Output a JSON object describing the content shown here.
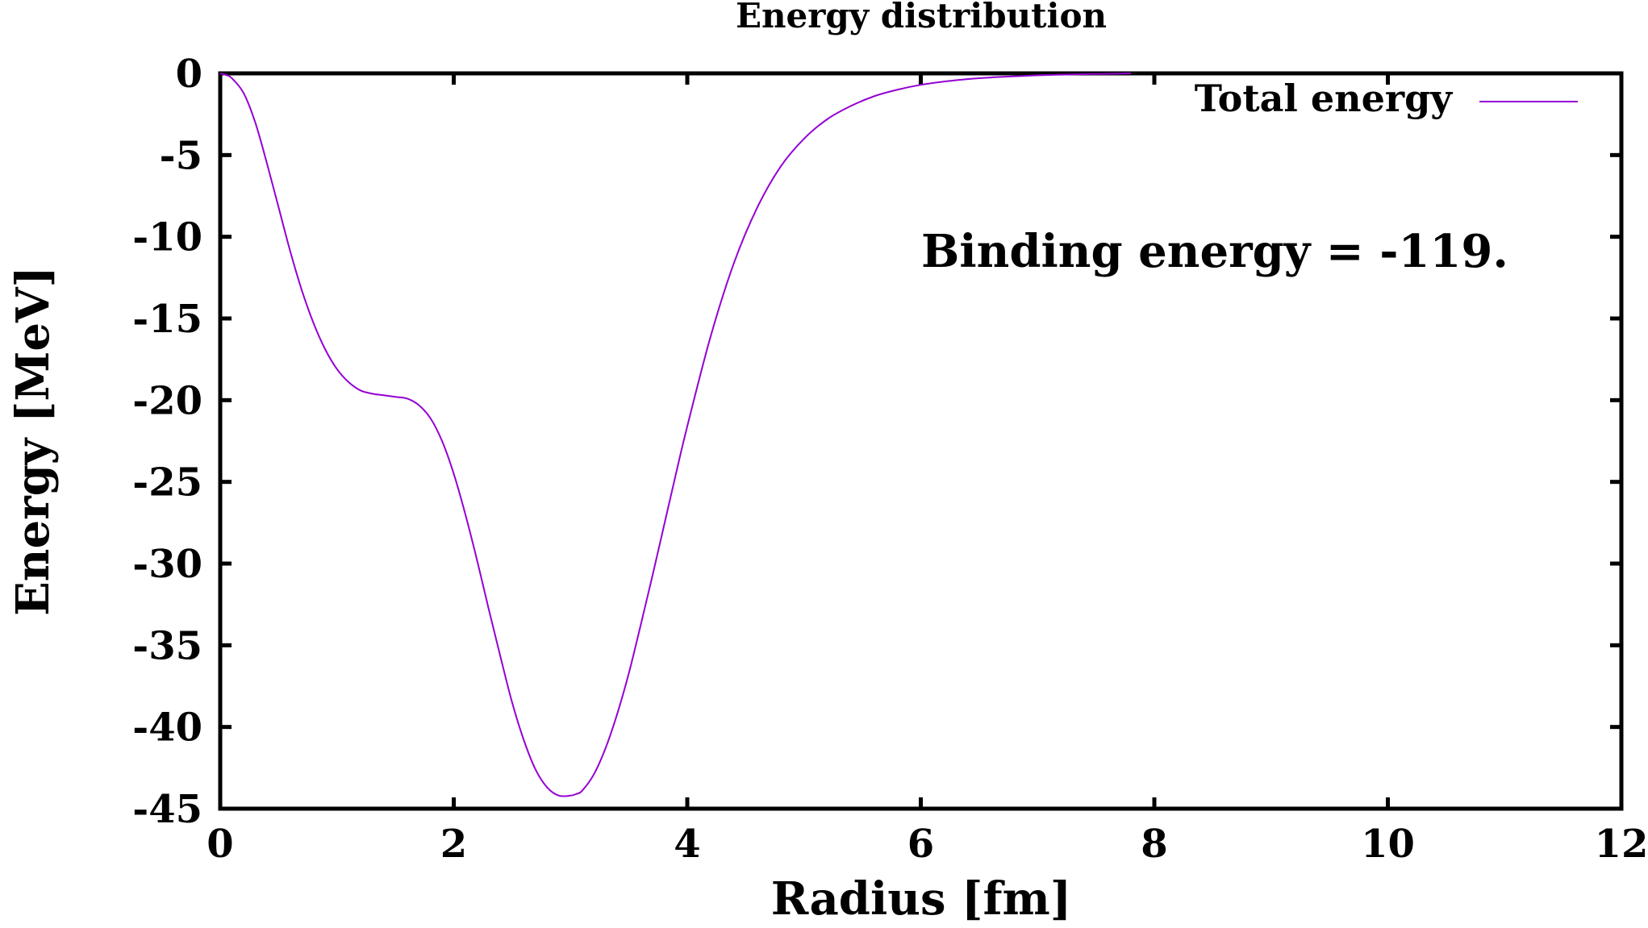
{
  "chart_data": {
    "type": "line",
    "title": "Energy distribution",
    "xlabel": "Radius [fm]",
    "ylabel": "Energy [MeV]",
    "xlim": [
      0,
      12
    ],
    "ylim": [
      -45,
      0
    ],
    "x_ticks": [
      "0",
      "2",
      "4",
      "6",
      "8",
      "10",
      "12"
    ],
    "y_ticks": [
      "0",
      "-5",
      "-10",
      "-15",
      "-20",
      "-25",
      "-30",
      "-35",
      "-40",
      "-45"
    ],
    "x_tick_values": [
      0,
      2,
      4,
      6,
      8,
      10,
      12
    ],
    "y_tick_values": [
      0,
      -5,
      -10,
      -15,
      -20,
      -25,
      -30,
      -35,
      -40,
      -45
    ],
    "grid": false,
    "legend_position": "top-right",
    "annotation": "Binding energy = -119.",
    "series": [
      {
        "name": "Total energy",
        "color": "#9400d3",
        "x": [
          0,
          0.05,
          0.1,
          0.2,
          0.3,
          0.4,
          0.5,
          0.6,
          0.7,
          0.8,
          0.9,
          1.0,
          1.1,
          1.2,
          1.3,
          1.4,
          1.5,
          1.6,
          1.7,
          1.8,
          1.9,
          2.0,
          2.1,
          2.2,
          2.3,
          2.4,
          2.5,
          2.6,
          2.7,
          2.8,
          2.9,
          3.0,
          3.05,
          3.1,
          3.2,
          3.3,
          3.4,
          3.5,
          3.6,
          3.7,
          3.8,
          3.9,
          4.0,
          4.2,
          4.4,
          4.6,
          4.8,
          5.0,
          5.2,
          5.4,
          5.6,
          5.8,
          6.0,
          6.2,
          6.4,
          6.6,
          6.8,
          7.0,
          7.2,
          7.4,
          7.6,
          7.8
        ],
        "y": [
          0.0,
          -0.1,
          -0.3,
          -1.2,
          -3.0,
          -5.5,
          -8.2,
          -10.9,
          -13.3,
          -15.3,
          -16.9,
          -18.1,
          -18.9,
          -19.4,
          -19.6,
          -19.7,
          -19.8,
          -19.9,
          -20.3,
          -21.1,
          -22.5,
          -24.5,
          -27.0,
          -29.8,
          -32.8,
          -35.7,
          -38.5,
          -40.8,
          -42.6,
          -43.7,
          -44.2,
          -44.2,
          -44.1,
          -43.9,
          -42.9,
          -41.3,
          -39.2,
          -36.7,
          -33.8,
          -30.8,
          -27.7,
          -24.6,
          -21.6,
          -16.1,
          -11.6,
          -8.2,
          -5.7,
          -4.0,
          -2.8,
          -2.0,
          -1.4,
          -1.0,
          -0.7,
          -0.5,
          -0.35,
          -0.25,
          -0.18,
          -0.12,
          -0.08,
          -0.05,
          -0.03,
          0.0
        ]
      }
    ]
  }
}
